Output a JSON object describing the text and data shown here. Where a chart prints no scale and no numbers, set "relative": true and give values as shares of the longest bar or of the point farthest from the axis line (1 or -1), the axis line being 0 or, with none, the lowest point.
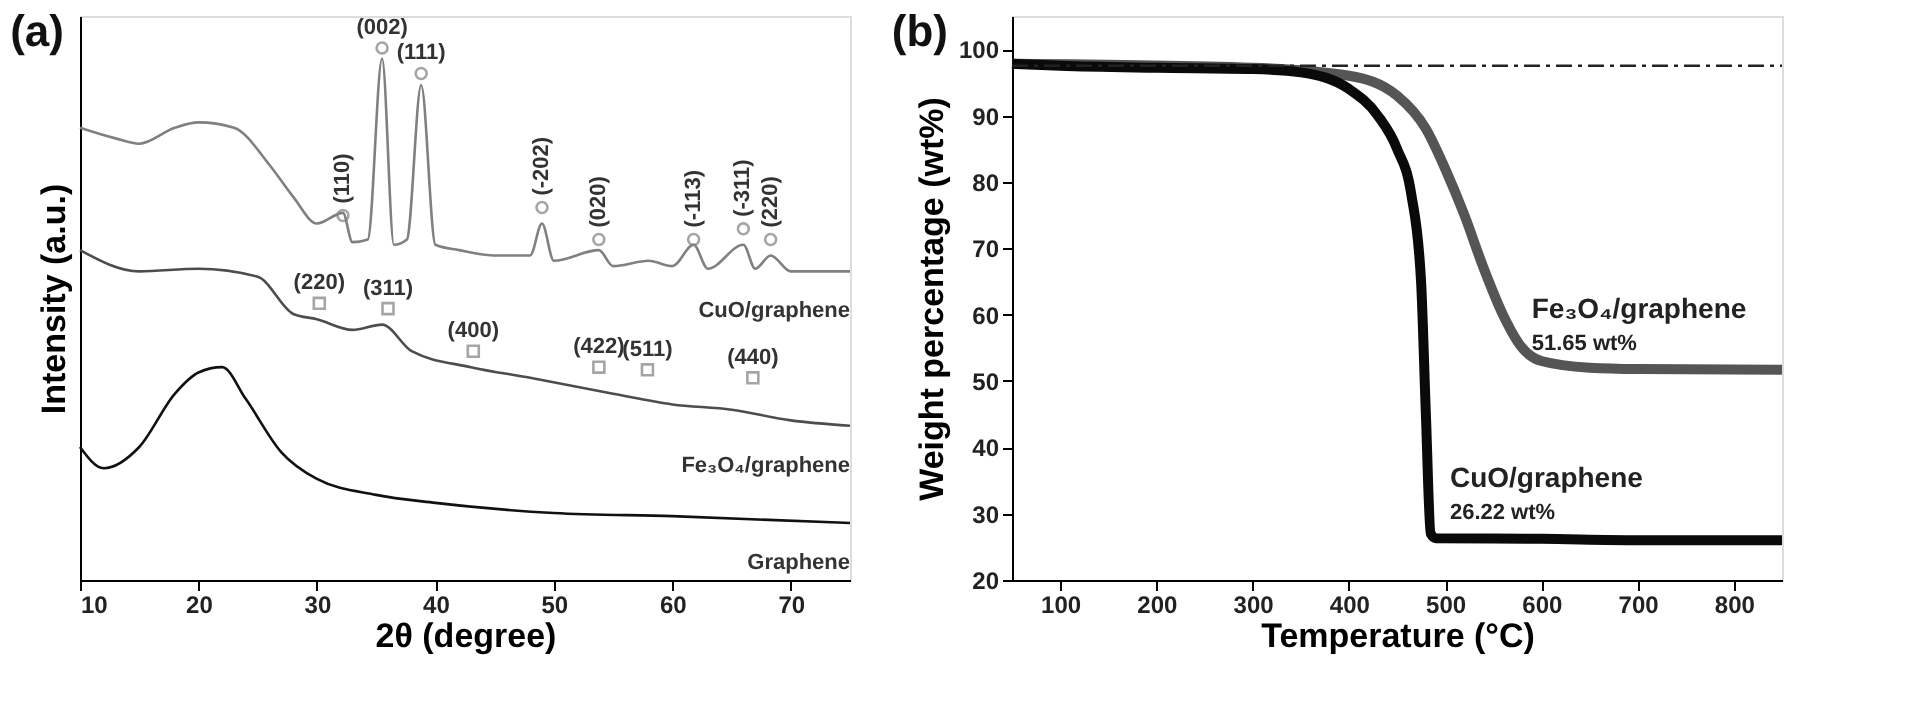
{
  "chart_data": [
    {
      "type": "line",
      "title": "(a)",
      "xlabel": "2θ (degree)",
      "ylabel": "Intensity (a.u.)",
      "relative": true,
      "xlim": [
        10,
        75
      ],
      "xticks": [
        10,
        20,
        30,
        40,
        50,
        60,
        70
      ],
      "tick_labels": "x",
      "grid": false,
      "series": [
        {
          "name": "CuO/graphene",
          "color": "#808080",
          "x": [
            10,
            13,
            15,
            18,
            20,
            23,
            26,
            28,
            30,
            32.2,
            33,
            34.3,
            35.5,
            36.5,
            37.6,
            38.8,
            40,
            42,
            45,
            48,
            49,
            50,
            53.8,
            55,
            58,
            60,
            61.8,
            63,
            66,
            67,
            68.3,
            70,
            75
          ],
          "values": [
            0.85,
            0.83,
            0.82,
            0.85,
            0.86,
            0.85,
            0.78,
            0.72,
            0.67,
            0.69,
            0.635,
            0.64,
            0.98,
            0.63,
            0.64,
            0.93,
            0.63,
            0.62,
            0.61,
            0.61,
            0.67,
            0.6,
            0.62,
            0.59,
            0.6,
            0.59,
            0.63,
            0.585,
            0.63,
            0.585,
            0.61,
            0.58,
            0.58
          ]
        },
        {
          "name": "Fe₃O₄/graphene",
          "color": "#4d4d4d",
          "x": [
            10,
            15,
            20,
            25,
            28,
            30,
            33,
            35.5,
            38,
            43,
            48,
            55,
            60,
            65,
            70,
            75
          ],
          "values": [
            0.62,
            0.58,
            0.585,
            0.57,
            0.5,
            0.49,
            0.47,
            0.48,
            0.43,
            0.4,
            0.38,
            0.35,
            0.33,
            0.32,
            0.3,
            0.29
          ]
        },
        {
          "name": "Graphene",
          "color": "#111111",
          "x": [
            10,
            12,
            15,
            18,
            20,
            22,
            24,
            27,
            30,
            35,
            40,
            50,
            60,
            75
          ],
          "values": [
            0.25,
            0.21,
            0.25,
            0.35,
            0.39,
            0.4,
            0.34,
            0.24,
            0.19,
            0.16,
            0.145,
            0.126,
            0.12,
            0.107
          ]
        },
        {
          "type": "scatter",
          "marker": "circle",
          "color": "#808080",
          "x": [
            32.2,
            35.5,
            38.8,
            49,
            53.8,
            61.8,
            66,
            68.3
          ],
          "values": [
            0.685,
            1.0,
            0.952,
            0.7,
            0.64,
            0.64,
            0.66,
            0.64
          ]
        },
        {
          "type": "scatter",
          "marker": "square",
          "color": "#808080",
          "x": [
            30.2,
            36,
            43.2,
            53.8,
            57.9,
            66.8
          ],
          "values": [
            0.52,
            0.51,
            0.43,
            0.4,
            0.395,
            0.38
          ]
        }
      ],
      "annotations": [
        {
          "text": "(110)",
          "x": 32.2,
          "y": 0.685
        },
        {
          "text": "(002)",
          "x": 35.5,
          "y": 1.0
        },
        {
          "text": "(111)",
          "x": 38.8,
          "y": 0.952
        },
        {
          "text": "(-202)",
          "x": 49,
          "y": 0.7
        },
        {
          "text": "(020)",
          "x": 53.8,
          "y": 0.64
        },
        {
          "text": "(-113)",
          "x": 61.8,
          "y": 0.64
        },
        {
          "text": "(-311)",
          "x": 66,
          "y": 0.66
        },
        {
          "text": "(220)",
          "x": 68.3,
          "y": 0.64
        },
        {
          "text": "(220)",
          "x": 30.2,
          "y": 0.52
        },
        {
          "text": "(311)",
          "x": 36,
          "y": 0.51
        },
        {
          "text": "(400)",
          "x": 43.2,
          "y": 0.43
        },
        {
          "text": "(422)",
          "x": 53.8,
          "y": 0.4
        },
        {
          "text": "(511)",
          "x": 57.9,
          "y": 0.395
        },
        {
          "text": "(440)",
          "x": 66.8,
          "y": 0.38
        }
      ]
    },
    {
      "type": "line",
      "title": "(b)",
      "xlabel": "Temperature (°C)",
      "ylabel": "Weight percentage (wt%)",
      "xlim": [
        50,
        850
      ],
      "ylim": [
        20,
        105
      ],
      "xticks": [
        100,
        200,
        300,
        400,
        500,
        600,
        700,
        800
      ],
      "yticks": [
        20,
        30,
        40,
        50,
        60,
        70,
        80,
        90,
        100
      ],
      "grid": false,
      "ref_lines": [
        {
          "axis": "y",
          "value": 97.5,
          "line_style": "dashed",
          "color": "#222222"
        }
      ],
      "series": [
        {
          "name": "Fe₃O₄/graphene",
          "color": "#555555",
          "x": [
            50,
            300,
            400,
            450,
            480,
            500,
            520,
            540,
            560,
            580,
            600,
            650,
            700,
            850
          ],
          "values": [
            97.8,
            97.2,
            96,
            93,
            88,
            82,
            75,
            67,
            60,
            55,
            53,
            52,
            51.8,
            51.7
          ]
        },
        {
          "name": "CuO/graphene",
          "color": "#0a0a0a",
          "x": [
            50,
            100,
            200,
            300,
            350,
            400,
            430,
            450,
            465,
            475,
            480,
            485,
            490,
            600,
            700,
            850
          ],
          "values": [
            97.8,
            97.5,
            97.2,
            97,
            96.5,
            94,
            90,
            85,
            78,
            65,
            45,
            27,
            26.3,
            26.2,
            26,
            26
          ]
        }
      ],
      "annotations": [
        {
          "text": "51.65 wt%",
          "x": 590,
          "y": 51.65
        },
        {
          "text": "26.22 wt%",
          "x": 505,
          "y": 26.22
        }
      ]
    }
  ]
}
